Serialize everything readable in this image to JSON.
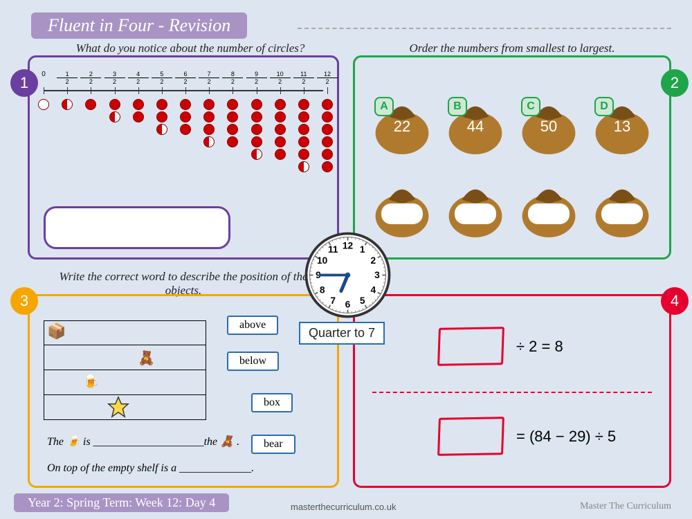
{
  "title": "Fluent in Four - Revision",
  "footer": "Year 2: Spring Term: Week 12: Day 4",
  "site": "masterthecurriculum.co.uk",
  "brand": "Master The Curriculum",
  "badges": [
    "1",
    "2",
    "3",
    "4"
  ],
  "colors": {
    "bg": "#dde5f0",
    "title_bg": "#a993c4",
    "p1": "#6b3fa0",
    "p2": "#1ea54a",
    "p3": "#f7a600",
    "p4": "#e6002e",
    "wordbox_border": "#2a6db0"
  },
  "panel1": {
    "prompt": "What do you notice about the number of circles?",
    "labels": [
      "0",
      "1/2",
      "2/2",
      "3/2",
      "4/2",
      "5/2",
      "6/2",
      "7/2",
      "8/2",
      "9/2",
      "10/2",
      "11/2",
      "12/2"
    ],
    "cols": [
      {
        "full": 0,
        "half": 0,
        "empty": 1
      },
      {
        "full": 0,
        "half": 1
      },
      {
        "full": 1,
        "half": 0
      },
      {
        "full": 1,
        "half": 1
      },
      {
        "full": 2,
        "half": 0
      },
      {
        "full": 2,
        "half": 1
      },
      {
        "full": 3,
        "half": 0
      },
      {
        "full": 3,
        "half": 1
      },
      {
        "full": 4,
        "half": 0
      },
      {
        "full": 4,
        "half": 1
      },
      {
        "full": 5,
        "half": 0
      },
      {
        "full": 5,
        "half": 1
      },
      {
        "full": 6,
        "half": 0
      }
    ]
  },
  "panel2": {
    "prompt": "Order the numbers from smallest to largest.",
    "bags_top": [
      {
        "letter": "A",
        "value": "22"
      },
      {
        "letter": "B",
        "value": "44"
      },
      {
        "letter": "C",
        "value": "50"
      },
      {
        "letter": "D",
        "value": "13"
      }
    ],
    "bags_bottom_count": 4,
    "bag_color": "#b07a2e",
    "bag_shadow": "#7a4f17"
  },
  "panel3": {
    "prompt": "Write the correct word to describe the position of the objects.",
    "words": [
      "above",
      "below",
      "box",
      "bear"
    ],
    "sentence1_pre": "The",
    "sentence1_mid": "is ____________________the",
    "sentence1_post": ".",
    "sentence2": "On top of the empty shelf is a _____________."
  },
  "clock": {
    "label": "Quarter to 7",
    "hour": 6,
    "minute": 45,
    "numbers": [
      "12",
      "1",
      "2",
      "3",
      "4",
      "5",
      "6",
      "7",
      "8",
      "9",
      "10",
      "11"
    ]
  },
  "panel4": {
    "eq1": "÷ 2 = 8",
    "eq2": "= (84 − 29) ÷ 5"
  }
}
